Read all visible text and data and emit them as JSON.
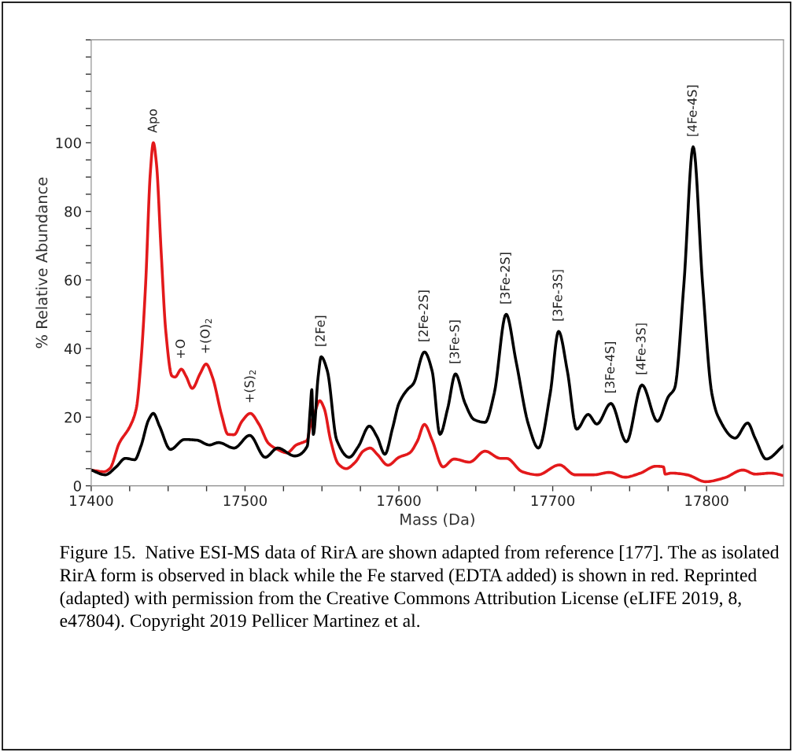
{
  "chart_data": {
    "type": "line",
    "xlabel": "Mass (Da)",
    "ylabel": "% Relative Abundance",
    "xlim": [
      17400,
      17850
    ],
    "xticks": [
      17400,
      {
        "value": 17425,
        "label": null
      },
      {
        "value": 17450,
        "label": null
      },
      {
        "value": 17475,
        "label": null
      },
      17500,
      {
        "value": 17525,
        "label": null
      },
      {
        "value": 17550,
        "label": null
      },
      {
        "value": 17575,
        "label": null
      },
      17600,
      {
        "value": 17625,
        "label": null
      },
      {
        "value": 17650,
        "label": null
      },
      {
        "value": 17675,
        "label": null
      },
      17700,
      {
        "value": 17725,
        "label": null
      },
      {
        "value": 17750,
        "label": null
      },
      {
        "value": 17775,
        "label": null
      },
      17800,
      {
        "value": 17825,
        "label": null
      }
    ],
    "ylim": [
      0,
      130
    ],
    "yticks": [
      0,
      {
        "value": 5,
        "label": null
      },
      {
        "value": 10,
        "label": null
      },
      {
        "value": 15,
        "label": null
      },
      20,
      {
        "value": 25,
        "label": null
      },
      {
        "value": 30,
        "label": null
      },
      {
        "value": 35,
        "label": null
      },
      40,
      {
        "value": 45,
        "label": null
      },
      {
        "value": 50,
        "label": null
      },
      {
        "value": 55,
        "label": null
      },
      60,
      {
        "value": 65,
        "label": null
      },
      {
        "value": 70,
        "label": null
      },
      {
        "value": 75,
        "label": null
      },
      80,
      {
        "value": 85,
        "label": null
      },
      {
        "value": 90,
        "label": null
      },
      {
        "value": 95,
        "label": null
      },
      100,
      {
        "value": 105,
        "label": null
      },
      {
        "value": 110,
        "label": null
      },
      {
        "value": 115,
        "label": null
      },
      {
        "value": 120,
        "label": null
      },
      {
        "value": 125,
        "label": null
      },
      {
        "value": 130,
        "label": null
      }
    ],
    "grid": false,
    "marker": "none",
    "line_style": "solid",
    "series": [
      {
        "color": "#e3191b",
        "x": [
          17400,
          17408.1,
          17412.1,
          17418.2,
          17425.3,
          17429.3,
          17432.3,
          17435.4,
          17438.4,
          17440.4,
          17442.4,
          17445.5,
          17448.5,
          17452.5,
          17454.5,
          17458.6,
          17461.6,
          17465.7,
          17470.7,
          17474.7,
          17478.8,
          17484.8,
          17488.9,
          17492.9,
          17498,
          17503.4,
          17509.1,
          17515.2,
          17521.2,
          17527.3,
          17533.3,
          17538.4,
          17540.4,
          17542.4,
          17545.5,
          17548.5,
          17551.5,
          17555.6,
          17560.6,
          17565.7,
          17571.7,
          17576.8,
          17581.4,
          17585.9,
          17592.9,
          17600,
          17607,
          17612,
          17616.6,
          17621.6,
          17628.7,
          17635.8,
          17645.9,
          17656,
          17666,
          17670,
          17680.2,
          17690.3,
          17704.4,
          17714.5,
          17726.7,
          17736.8,
          17746.9,
          17757,
          17767,
          17772,
          17773.1,
          17777.2,
          17787.3,
          17799.4,
          17811.5,
          17823.6,
          17831.7,
          17841.8,
          17849.9
        ],
        "values": [
          4.6,
          4.1,
          5,
          12.4,
          17.4,
          22.5,
          36,
          59,
          91,
          100,
          94,
          68,
          45,
          32,
          31.7,
          34,
          32,
          28.4,
          32.6,
          35.5,
          31.7,
          20.6,
          15,
          14.9,
          18.8,
          21.1,
          17.9,
          12.4,
          10.6,
          9.6,
          11.9,
          12.8,
          13.3,
          17.4,
          21.6,
          24.8,
          22.5,
          13.3,
          6.4,
          5,
          6.9,
          10.1,
          11,
          9.2,
          6,
          8.3,
          9.6,
          13,
          17.9,
          13.3,
          5.5,
          7.8,
          6.9,
          10.1,
          8,
          8,
          4.1,
          3.2,
          6.1,
          3.2,
          3.2,
          3.9,
          2.5,
          3.7,
          5.7,
          5.5,
          3.4,
          3.7,
          3.2,
          1.2,
          2.3,
          4.6,
          3.4,
          3.7,
          3
        ]
      },
      {
        "color": "#000000",
        "x": [
          17400,
          17409.1,
          17416.2,
          17422.2,
          17428.3,
          17432.3,
          17437.4,
          17440.4,
          17444.4,
          17451.5,
          17460.6,
          17468.7,
          17476.8,
          17482.8,
          17492.9,
          17503,
          17513.1,
          17521.2,
          17532.3,
          17540.4,
          17542.4,
          17543.4,
          17544.4,
          17547.5,
          17549.5,
          17553.5,
          17559.6,
          17567.7,
          17573.7,
          17580.8,
          17585.9,
          17590.9,
          17596,
          17600,
          17605.5,
          17609.5,
          17616.6,
          17621.6,
          17626.7,
          17631.7,
          17636.8,
          17642.8,
          17648.9,
          17656,
          17662,
          17669.7,
          17676.2,
          17684.2,
          17690.7,
          17698.4,
          17703.8,
          17709.5,
          17715.6,
          17723,
          17728.7,
          17737.8,
          17747.9,
          17758,
          17768.1,
          17775.2,
          17779.2,
          17785.3,
          17791.3,
          17797.4,
          17803.4,
          17807.5,
          17818.6,
          17826.7,
          17831.7,
          17838.8,
          17849.9
        ],
        "values": [
          4.6,
          3.2,
          5.5,
          8,
          7.6,
          11.5,
          19.3,
          21.1,
          17.4,
          10.6,
          13.5,
          13.3,
          11.9,
          12.6,
          11,
          14.7,
          8.3,
          11,
          8.7,
          11.5,
          22.5,
          28,
          15,
          31.7,
          37.6,
          33.5,
          13.3,
          8.3,
          11.5,
          17.4,
          14.2,
          9.2,
          17,
          24,
          28,
          29.8,
          39,
          33.5,
          15,
          22.5,
          32.6,
          24.3,
          19.3,
          18.5,
          27,
          50,
          36.2,
          17.9,
          11,
          27,
          45,
          33.5,
          16.5,
          20.8,
          18,
          24,
          12.8,
          29.4,
          18.8,
          26,
          28.4,
          59,
          98.8,
          59,
          27,
          20.2,
          13.9,
          18.3,
          13.7,
          7.8,
          11.7
        ]
      }
    ],
    "annotations": [
      {
        "text": "Apo",
        "x": 17440.4,
        "y": 100
      },
      {
        "text": "+O",
        "x": 17458.6,
        "y": 34
      },
      {
        "text": "+(O)$_{2}$",
        "x": 17474.7,
        "y": 35.5
      },
      {
        "text": "+(S)$_{2}$",
        "x": 17503.4,
        "y": 21.1
      },
      {
        "text": "[2Fe]",
        "x": 17549.5,
        "y": 37.6
      },
      {
        "text": "[2Fe-2S]",
        "x": 17616.6,
        "y": 39
      },
      {
        "text": "[3Fe-S]",
        "x": 17636.8,
        "y": 32.6
      },
      {
        "text": "[3Fe-2S]",
        "x": 17669.7,
        "y": 50
      },
      {
        "text": "[3Fe-3S]",
        "x": 17703.8,
        "y": 45
      },
      {
        "text": "[3Fe-4S]",
        "x": 17737.8,
        "y": 24
      },
      {
        "text": "[4Fe-3S]",
        "x": 17758,
        "y": 29.4
      },
      {
        "text": "[4Fe-4S]",
        "x": 17791.3,
        "y": 98.8
      },
      "Figure 15.  Native ESI-MS data of RirA are shown adapted from reference [177]. The as isolated RirA form is observed in black while the Fe starved (EDTA added) is shown in red. Reprinted (adapted) with permission from the Creative Commons Attribution License (eLIFE 2019, 8, e47804). Copyright 2019 Pellicer Martinez et al."
    ]
  }
}
